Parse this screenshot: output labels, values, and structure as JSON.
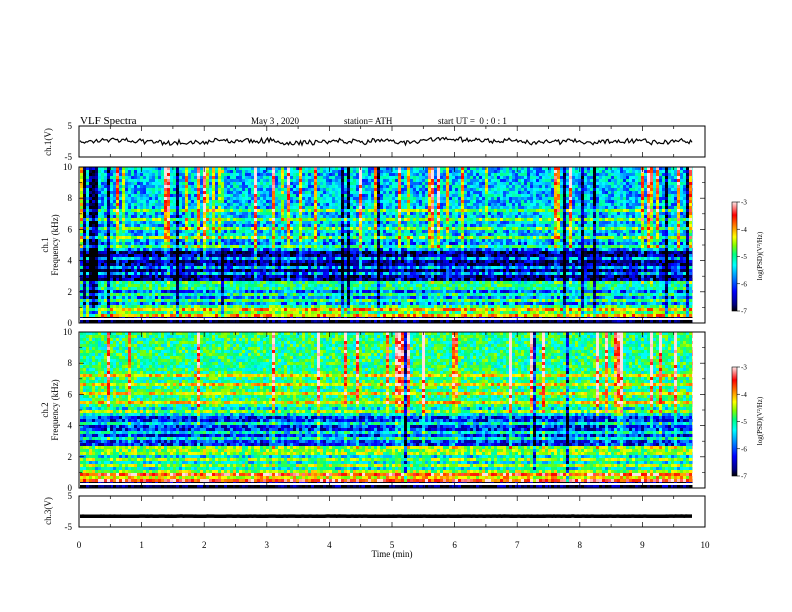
{
  "header": {
    "title": "VLF Spectra",
    "date": "May 3 , 2020",
    "station": "station= ATH",
    "start_ut": "start UT =  0 : 0 : 1"
  },
  "chart_data": [
    {
      "type": "line",
      "name": "ch1-waveform",
      "ylabel": "ch.1(V)",
      "ylim": [
        -5,
        5
      ],
      "yticks": [
        "5",
        "-5"
      ],
      "xlim": [
        0,
        10
      ],
      "data_end_min": 9.8,
      "approx_level_v": 0,
      "color": "#000000"
    },
    {
      "type": "heatmap",
      "name": "ch1-spectrogram",
      "ylabel_line1": "ch.1",
      "ylabel_line2": "Frequency (kHz)",
      "ylim": [
        0,
        10
      ],
      "yticks": [
        "0",
        "2",
        "4",
        "6",
        "8",
        "10"
      ],
      "xlim": [
        0,
        10
      ],
      "data_end_min": 9.8,
      "colorbar": {
        "label": "log(PSD)(V²/Hz)",
        "range": [
          -7,
          -3
        ],
        "ticks": [
          "-3",
          "-4",
          "-5",
          "-6",
          "-7"
        ]
      }
    },
    {
      "type": "heatmap",
      "name": "ch2-spectrogram",
      "ylabel_line1": "ch.2",
      "ylabel_line2": "Frequency (kHz)",
      "ylim": [
        0,
        10
      ],
      "yticks": [
        "0",
        "2",
        "4",
        "6",
        "8",
        "10"
      ],
      "xlim": [
        0,
        10
      ],
      "data_end_min": 9.8,
      "colorbar": {
        "label": "log(PSD)(V²/Hz)",
        "range": [
          -7,
          -3
        ],
        "ticks": [
          "-3",
          "-4",
          "-5",
          "-6",
          "-7"
        ]
      }
    },
    {
      "type": "line",
      "name": "ch3-waveform",
      "ylabel": "ch.3(V)",
      "ylim": [
        -5,
        5
      ],
      "yticks": [
        "5",
        "-5"
      ],
      "xlim": [
        0,
        10
      ],
      "data_end_min": 9.8,
      "approx_level_v": -1.5,
      "color": "#000000"
    }
  ],
  "xaxis": {
    "label": "Time (min)",
    "ticks": [
      "0",
      "1",
      "2",
      "3",
      "4",
      "5",
      "6",
      "7",
      "8",
      "9",
      "10"
    ]
  },
  "colors": {
    "colormap": [
      "#000000",
      "#000080",
      "#0000ff",
      "#0080ff",
      "#00ffff",
      "#00ff80",
      "#80ff00",
      "#ffff00",
      "#ff8000",
      "#ff0000",
      "#ffe0e0"
    ]
  }
}
